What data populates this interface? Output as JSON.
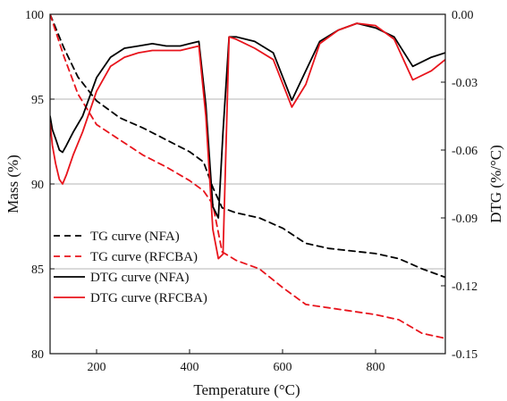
{
  "chart_data": {
    "type": "line",
    "title": "",
    "xlabel": "Temperature (°C)",
    "ylabel_left": "Mass (%)",
    "ylabel_right": "DTG (%/°C)",
    "xlim": [
      100,
      950
    ],
    "ylim_left": [
      80,
      100
    ],
    "ylim_right": [
      -0.15,
      0.0
    ],
    "x_ticks": [
      200,
      400,
      600,
      800
    ],
    "y_left_ticks": [
      80,
      85,
      90,
      95,
      100
    ],
    "y_right_ticks": [
      -0.15,
      -0.12,
      -0.09,
      -0.06,
      -0.03,
      0.0
    ],
    "y_right_tick_labels": [
      "-0.15",
      "-0.12",
      "-0.09",
      "-0.06",
      "-0.03",
      "0.00"
    ],
    "grid": "horizontal",
    "legend_position": "center-left",
    "series": [
      {
        "name": "TG curve (NFA)",
        "axis": "left",
        "color": "#000000",
        "style": "dashed",
        "x": [
          100,
          130,
          160,
          200,
          250,
          300,
          350,
          400,
          430,
          450,
          470,
          500,
          550,
          600,
          650,
          700,
          800,
          850,
          900,
          950
        ],
        "y": [
          100,
          98.0,
          96.3,
          94.9,
          93.9,
          93.3,
          92.6,
          91.9,
          91.3,
          89.8,
          88.6,
          88.3,
          88.0,
          87.4,
          86.5,
          86.2,
          85.9,
          85.6,
          85.0,
          84.5
        ]
      },
      {
        "name": "TG curve (RFCBA)",
        "axis": "left",
        "color": "#e8141c",
        "style": "dashed",
        "x": [
          100,
          130,
          160,
          200,
          250,
          300,
          350,
          400,
          430,
          450,
          470,
          500,
          550,
          600,
          650,
          700,
          800,
          850,
          900,
          950
        ],
        "y": [
          100,
          97.5,
          95.3,
          93.5,
          92.6,
          91.7,
          91.0,
          90.2,
          89.6,
          88.8,
          86.0,
          85.5,
          85.0,
          83.9,
          82.9,
          82.7,
          82.3,
          82.0,
          81.2,
          80.9
        ]
      },
      {
        "name": "DTG curve (NFA)",
        "axis": "right",
        "color": "#000000",
        "style": "solid",
        "x": [
          100,
          105,
          112,
          120,
          127,
          135,
          150,
          170,
          200,
          230,
          260,
          290,
          320,
          350,
          380,
          400,
          420,
          435,
          450,
          462,
          472,
          485,
          500,
          540,
          580,
          620,
          650,
          680,
          720,
          760,
          800,
          840,
          880,
          920,
          950
        ],
        "y": [
          -0.045,
          -0.051,
          -0.055,
          -0.06,
          -0.061,
          -0.058,
          -0.052,
          -0.045,
          -0.028,
          -0.019,
          -0.015,
          -0.014,
          -0.013,
          -0.014,
          -0.014,
          -0.013,
          -0.012,
          -0.04,
          -0.085,
          -0.09,
          -0.052,
          -0.01,
          -0.01,
          -0.012,
          -0.017,
          -0.038,
          -0.025,
          -0.012,
          -0.007,
          -0.004,
          -0.006,
          -0.01,
          -0.023,
          -0.019,
          -0.017
        ]
      },
      {
        "name": "DTG curve (RFCBA)",
        "axis": "right",
        "color": "#e8141c",
        "style": "solid",
        "x": [
          100,
          105,
          112,
          120,
          127,
          135,
          150,
          170,
          200,
          230,
          260,
          290,
          320,
          350,
          380,
          400,
          420,
          435,
          450,
          462,
          472,
          485,
          500,
          540,
          580,
          620,
          650,
          680,
          720,
          760,
          800,
          840,
          880,
          920,
          950
        ],
        "y": [
          -0.048,
          -0.058,
          -0.066,
          -0.073,
          -0.075,
          -0.071,
          -0.062,
          -0.052,
          -0.034,
          -0.023,
          -0.019,
          -0.017,
          -0.016,
          -0.016,
          -0.016,
          -0.015,
          -0.014,
          -0.045,
          -0.095,
          -0.108,
          -0.106,
          -0.01,
          -0.011,
          -0.015,
          -0.02,
          -0.041,
          -0.031,
          -0.013,
          -0.007,
          -0.004,
          -0.005,
          -0.011,
          -0.029,
          -0.025,
          -0.02
        ]
      }
    ]
  }
}
